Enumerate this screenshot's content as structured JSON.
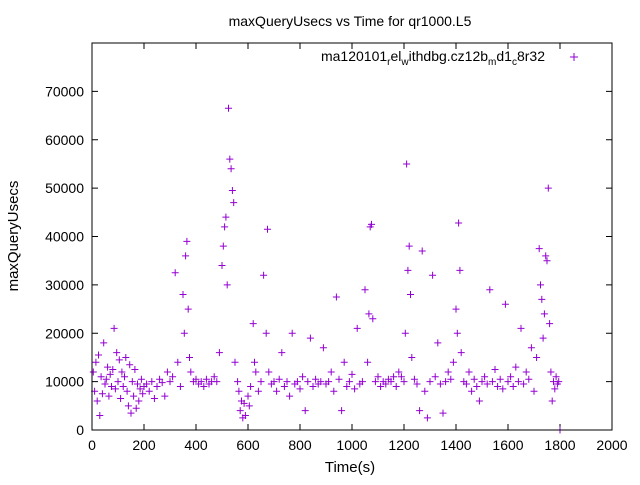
{
  "chart_data": {
    "type": "scatter",
    "title": "maxQueryUsecs vs Time for qr1000.L5",
    "xlabel": "Time(s)",
    "ylabel": "maxQueryUsecs",
    "xlim": [
      0,
      2000
    ],
    "ylim": [
      0,
      80000
    ],
    "x_ticks": [
      0,
      200,
      400,
      600,
      800,
      1000,
      1200,
      1400,
      1600,
      1800,
      2000
    ],
    "y_ticks": [
      0,
      10000,
      20000,
      30000,
      40000,
      50000,
      60000,
      70000
    ],
    "grid": false,
    "legend_position": "top-right",
    "series": [
      {
        "name": "ma120101_rel_withdbg.cz12b_md1_c8r32",
        "legend_label_base": "ma120101",
        "legend_label_parts": [
          {
            "t": "r",
            "sub": true
          },
          {
            "t": "el",
            "sub": false
          },
          {
            "t": "w",
            "sub": true
          },
          {
            "t": "ithdbg.cz12b",
            "sub": false
          },
          {
            "t": "m",
            "sub": true
          },
          {
            "t": "d1",
            "sub": false
          },
          {
            "t": "c",
            "sub": true
          },
          {
            "t": "8r32",
            "sub": false
          }
        ],
        "color": "#9400d3",
        "marker": "plus",
        "points": [
          [
            5,
            12000
          ],
          [
            10,
            8000
          ],
          [
            15,
            14000
          ],
          [
            20,
            6000
          ],
          [
            25,
            15500
          ],
          [
            30,
            3000
          ],
          [
            35,
            11000
          ],
          [
            40,
            7500
          ],
          [
            45,
            18000
          ],
          [
            50,
            9500
          ],
          [
            55,
            10500
          ],
          [
            60,
            13000
          ],
          [
            65,
            7000
          ],
          [
            70,
            11500
          ],
          [
            75,
            9000
          ],
          [
            80,
            12500
          ],
          [
            85,
            21000
          ],
          [
            90,
            8500
          ],
          [
            95,
            16000
          ],
          [
            100,
            10000
          ],
          [
            105,
            14500
          ],
          [
            110,
            6500
          ],
          [
            115,
            12000
          ],
          [
            120,
            9000
          ],
          [
            125,
            11000
          ],
          [
            130,
            15000
          ],
          [
            135,
            8000
          ],
          [
            140,
            5000
          ],
          [
            145,
            13500
          ],
          [
            150,
            3500
          ],
          [
            155,
            10000
          ],
          [
            160,
            7000
          ],
          [
            165,
            12500
          ],
          [
            170,
            4500
          ],
          [
            175,
            9500
          ],
          [
            180,
            6000
          ],
          [
            185,
            8500
          ],
          [
            190,
            10500
          ],
          [
            195,
            7500
          ],
          [
            200,
            9000
          ],
          [
            210,
            9500
          ],
          [
            220,
            8000
          ],
          [
            230,
            10000
          ],
          [
            240,
            6500
          ],
          [
            250,
            9000
          ],
          [
            260,
            10500
          ],
          [
            270,
            9800
          ],
          [
            280,
            7000
          ],
          [
            290,
            12000
          ],
          [
            300,
            10000
          ],
          [
            310,
            11000
          ],
          [
            320,
            32500
          ],
          [
            330,
            14000
          ],
          [
            340,
            9000
          ],
          [
            350,
            28000
          ],
          [
            355,
            20000
          ],
          [
            360,
            36000
          ],
          [
            365,
            39000
          ],
          [
            370,
            25000
          ],
          [
            375,
            15000
          ],
          [
            380,
            12000
          ],
          [
            390,
            10000
          ],
          [
            400,
            10500
          ],
          [
            410,
            9500
          ],
          [
            420,
            10000
          ],
          [
            430,
            9000
          ],
          [
            440,
            10500
          ],
          [
            450,
            9500
          ],
          [
            460,
            10000
          ],
          [
            470,
            11000
          ],
          [
            480,
            10000
          ],
          [
            490,
            16000
          ],
          [
            500,
            34000
          ],
          [
            505,
            38000
          ],
          [
            510,
            42000
          ],
          [
            515,
            44000
          ],
          [
            520,
            30000
          ],
          [
            525,
            66500
          ],
          [
            530,
            56000
          ],
          [
            535,
            54000
          ],
          [
            540,
            49500
          ],
          [
            545,
            47000
          ],
          [
            550,
            14000
          ],
          [
            560,
            10000
          ],
          [
            565,
            8000
          ],
          [
            570,
            4000
          ],
          [
            575,
            6000
          ],
          [
            580,
            2500
          ],
          [
            585,
            5500
          ],
          [
            590,
            3000
          ],
          [
            600,
            7000
          ],
          [
            605,
            5000
          ],
          [
            610,
            9000
          ],
          [
            620,
            22000
          ],
          [
            625,
            14000
          ],
          [
            630,
            12000
          ],
          [
            640,
            8000
          ],
          [
            650,
            10000
          ],
          [
            660,
            32000
          ],
          [
            670,
            20000
          ],
          [
            675,
            41500
          ],
          [
            680,
            12000
          ],
          [
            690,
            9500
          ],
          [
            700,
            10000
          ],
          [
            710,
            8000
          ],
          [
            720,
            10500
          ],
          [
            730,
            16000
          ],
          [
            740,
            9000
          ],
          [
            750,
            10000
          ],
          [
            760,
            7000
          ],
          [
            770,
            20000
          ],
          [
            780,
            9500
          ],
          [
            790,
            10000
          ],
          [
            800,
            8500
          ],
          [
            810,
            11000
          ],
          [
            820,
            4000
          ],
          [
            830,
            10000
          ],
          [
            840,
            19000
          ],
          [
            850,
            9000
          ],
          [
            860,
            10500
          ],
          [
            870,
            9500
          ],
          [
            880,
            10000
          ],
          [
            890,
            17000
          ],
          [
            900,
            9500
          ],
          [
            910,
            10000
          ],
          [
            920,
            12000
          ],
          [
            930,
            8000
          ],
          [
            940,
            27500
          ],
          [
            950,
            10500
          ],
          [
            960,
            4000
          ],
          [
            970,
            14000
          ],
          [
            980,
            9000
          ],
          [
            990,
            10000
          ],
          [
            1000,
            11500
          ],
          [
            1010,
            8500
          ],
          [
            1020,
            21000
          ],
          [
            1030,
            9500
          ],
          [
            1040,
            10000
          ],
          [
            1050,
            29000
          ],
          [
            1060,
            14000
          ],
          [
            1065,
            24000
          ],
          [
            1070,
            42000
          ],
          [
            1075,
            42500
          ],
          [
            1080,
            23000
          ],
          [
            1090,
            10000
          ],
          [
            1100,
            11000
          ],
          [
            1110,
            9000
          ],
          [
            1120,
            10000
          ],
          [
            1130,
            9500
          ],
          [
            1140,
            10500
          ],
          [
            1150,
            10000
          ],
          [
            1160,
            11000
          ],
          [
            1170,
            9000
          ],
          [
            1180,
            12000
          ],
          [
            1190,
            11000
          ],
          [
            1200,
            10000
          ],
          [
            1205,
            20000
          ],
          [
            1210,
            55000
          ],
          [
            1215,
            33000
          ],
          [
            1220,
            38000
          ],
          [
            1225,
            28000
          ],
          [
            1230,
            15000
          ],
          [
            1240,
            10500
          ],
          [
            1250,
            9500
          ],
          [
            1260,
            4000
          ],
          [
            1270,
            37000
          ],
          [
            1280,
            8000
          ],
          [
            1290,
            2500
          ],
          [
            1300,
            10000
          ],
          [
            1310,
            32000
          ],
          [
            1320,
            11000
          ],
          [
            1330,
            18000
          ],
          [
            1340,
            9500
          ],
          [
            1350,
            3500
          ],
          [
            1360,
            10000
          ],
          [
            1370,
            12000
          ],
          [
            1380,
            10500
          ],
          [
            1390,
            14000
          ],
          [
            1400,
            25000
          ],
          [
            1405,
            20000
          ],
          [
            1410,
            42800
          ],
          [
            1415,
            33000
          ],
          [
            1420,
            16000
          ],
          [
            1430,
            10000
          ],
          [
            1440,
            9500
          ],
          [
            1450,
            12000
          ],
          [
            1460,
            8000
          ],
          [
            1470,
            10500
          ],
          [
            1480,
            9000
          ],
          [
            1490,
            6000
          ],
          [
            1500,
            10000
          ],
          [
            1510,
            11000
          ],
          [
            1520,
            9500
          ],
          [
            1530,
            29000
          ],
          [
            1540,
            10000
          ],
          [
            1550,
            12500
          ],
          [
            1560,
            9000
          ],
          [
            1570,
            10500
          ],
          [
            1580,
            8500
          ],
          [
            1590,
            26000
          ],
          [
            1600,
            10000
          ],
          [
            1610,
            11000
          ],
          [
            1620,
            9000
          ],
          [
            1630,
            13000
          ],
          [
            1640,
            10000
          ],
          [
            1650,
            21000
          ],
          [
            1660,
            9500
          ],
          [
            1670,
            12000
          ],
          [
            1680,
            10500
          ],
          [
            1690,
            17000
          ],
          [
            1700,
            8000
          ],
          [
            1710,
            15000
          ],
          [
            1720,
            37500
          ],
          [
            1725,
            30000
          ],
          [
            1730,
            27000
          ],
          [
            1735,
            19000
          ],
          [
            1740,
            24000
          ],
          [
            1745,
            36000
          ],
          [
            1750,
            35000
          ],
          [
            1755,
            50000
          ],
          [
            1760,
            22000
          ],
          [
            1765,
            12000
          ],
          [
            1770,
            6000
          ],
          [
            1775,
            10000
          ],
          [
            1780,
            8500
          ],
          [
            1785,
            11000
          ],
          [
            1790,
            9500
          ],
          [
            1795,
            10000
          ],
          [
            1800,
            0
          ]
        ]
      }
    ]
  }
}
